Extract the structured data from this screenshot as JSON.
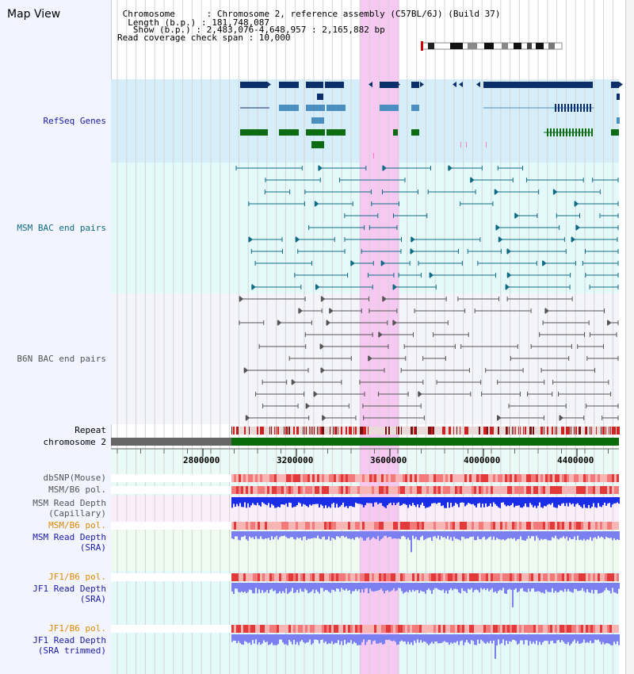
{
  "app": {
    "title": "Map View"
  },
  "header": {
    "lines": [
      " Chromosome      : Chromosome 2, reference assembly (C57BL/6J) (Build 37)",
      "  Length (b.p.) : 181,748,087",
      "   Show (b.p.) : 2,483,076-4,648,957 : 2,165,882 bp",
      "Read coverage check span : 10,000"
    ]
  },
  "tracks": {
    "refseq": "RefSeq Genes",
    "msm_bac": "MSM BAC end pairs",
    "b6n_bac": "B6N BAC end pairs",
    "repeat": "Repeat",
    "chromosome": "chromosome 2",
    "dbsnp": "dbSNP(Mouse)",
    "msm_b6_pol": "MSM/B6 pol.",
    "msm_read_depth_cap_1": "MSM Read Depth",
    "msm_read_depth_cap_2": "(Capillary)",
    "msm_b6_pol_2": "MSM/B6 pol.",
    "msm_read_depth_sra_1": "MSM Read Depth",
    "msm_read_depth_sra_2": "(SRA)",
    "jf1_b6_pol": "JF1/B6 pol.",
    "jf1_read_depth_sra_1": "JF1 Read Depth",
    "jf1_read_depth_sra_2": "(SRA)",
    "jf1_b6_pol_2": "JF1/B6 pol.",
    "jf1_read_depth_trim_1": "JF1 Read Depth",
    "jf1_read_depth_trim_2": "(SRA trimmed)"
  },
  "axis": {
    "ticks": [
      "2800000",
      "3200000",
      "3600000",
      "4000000",
      "4400000"
    ],
    "tick_values": [
      2800000,
      3200000,
      3600000,
      4000000,
      4400000
    ]
  },
  "highlight_region": {
    "start": 3470000,
    "end": 3640000
  },
  "colors": {
    "refseq_dark": "#0b2f6b",
    "refseq_mid": "#4a8fbf",
    "refseq_green": "#0d6b14",
    "msm_bac": "#0e6b86",
    "b6n_bac": "#555555",
    "repeat_red": "#cc2222",
    "chrom_gray": "#666666",
    "chrom_green": "#0a6a0a",
    "depth_blue": "#1a2ee8",
    "depth_blue_light": "#7a80f0",
    "highlight": "#f7c8f1",
    "label_blue": "#1a1aa8",
    "label_teal": "#0f6b80",
    "label_gray": "#555555",
    "label_orange": "#e08a00"
  }
}
